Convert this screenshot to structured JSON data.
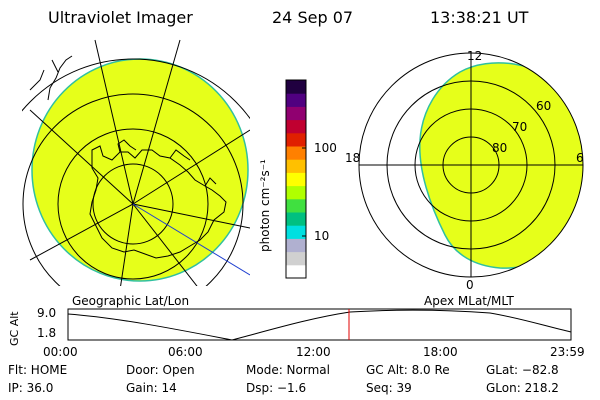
{
  "header": {
    "instrument": "Ultraviolet Imager",
    "date": "24 Sep 07",
    "time": "13:38:21 UT"
  },
  "colorbar": {
    "unit_label": "photon cm⁻²s⁻¹",
    "tick_100": "100",
    "tick_10": "10",
    "colors": [
      "#ffffff",
      "#d0d0d0",
      "#b0b0d0",
      "#00e0e0",
      "#00c080",
      "#40e040",
      "#b0ff00",
      "#ffff00",
      "#ffc000",
      "#ff8000",
      "#e02000",
      "#c00030",
      "#900070",
      "#500080",
      "#200040"
    ]
  },
  "left_map": {
    "caption": "Geographic Lat/Lon",
    "fill_color": "#e6ff1a"
  },
  "right_map": {
    "caption": "Apex MLat/MLT",
    "fill_color": "#e6ff1a",
    "mlt_12": "12",
    "mlt_18": "18",
    "mlt_6": "6",
    "mlt_0": "0",
    "lat_60": "60",
    "lat_70": "70",
    "lat_80": "80"
  },
  "altitude_plot": {
    "ylabel": "GC Alt",
    "ytick_top": "9.0",
    "ytick_bottom": "1.8",
    "xticks": [
      "00:00",
      "06:00",
      "12:00",
      "18:00",
      "23:59"
    ],
    "marker_color": "#e00000"
  },
  "footer": {
    "filter": "Flt: HOME",
    "door": "Door: Open",
    "mode": "Mode: Normal",
    "gc_alt": "GC Alt: 8.0 Re",
    "glat": "GLat: −82.8",
    "ip": "IP: 36.0",
    "gain": "Gain: 14",
    "dsp": "Dsp:    −1.6",
    "seq": "Seq: 39",
    "glon": "GLon: 218.2"
  }
}
